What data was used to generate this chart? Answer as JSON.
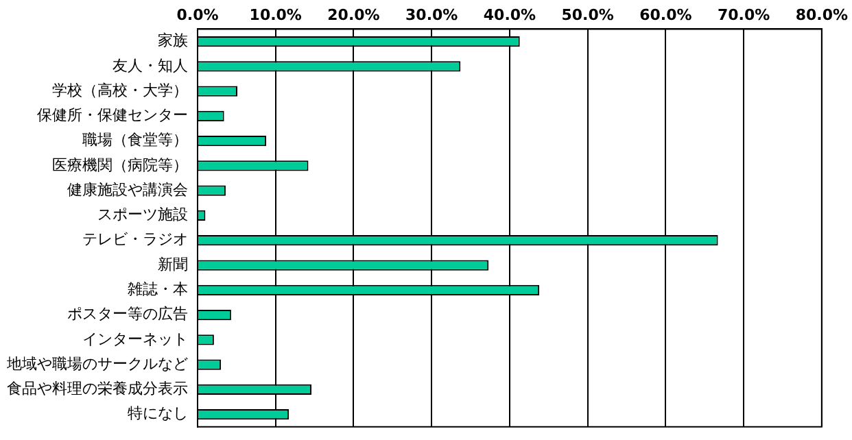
{
  "chart_data": {
    "type": "bar",
    "orientation": "horizontal",
    "categories": [
      "家族",
      "友人・知人",
      "学校（高校・大学）",
      "保健所・保健センター",
      "職場（食堂等）",
      "医療機関（病院等）",
      "健康施設や講演会",
      "スポーツ施設",
      "テレビ・ラジオ",
      "新聞",
      "雑誌・本",
      "ポスター等の広告",
      "インターネット",
      "地域や職場のサークルなど",
      "食品や料理の栄養成分表示",
      "特になし"
    ],
    "values": [
      41.3,
      33.7,
      5.1,
      3.4,
      8.8,
      14.2,
      3.6,
      1.0,
      66.7,
      37.3,
      43.8,
      4.3,
      2.1,
      3.0,
      14.6,
      11.7
    ],
    "color": "#00cc99",
    "xlim": [
      0,
      80
    ],
    "xticks": [
      {
        "value": 0,
        "label": "0.0%"
      },
      {
        "value": 10,
        "label": "10.0%"
      },
      {
        "value": 20,
        "label": "20.0%"
      },
      {
        "value": 30,
        "label": "30.0%"
      },
      {
        "value": 40,
        "label": "40.0%"
      },
      {
        "value": 50,
        "label": "50.0%"
      },
      {
        "value": 60,
        "label": "60.0%"
      },
      {
        "value": 70,
        "label": "70.0%"
      },
      {
        "value": 80,
        "label": "80.0%"
      }
    ],
    "grid": "x",
    "legend": false
  }
}
